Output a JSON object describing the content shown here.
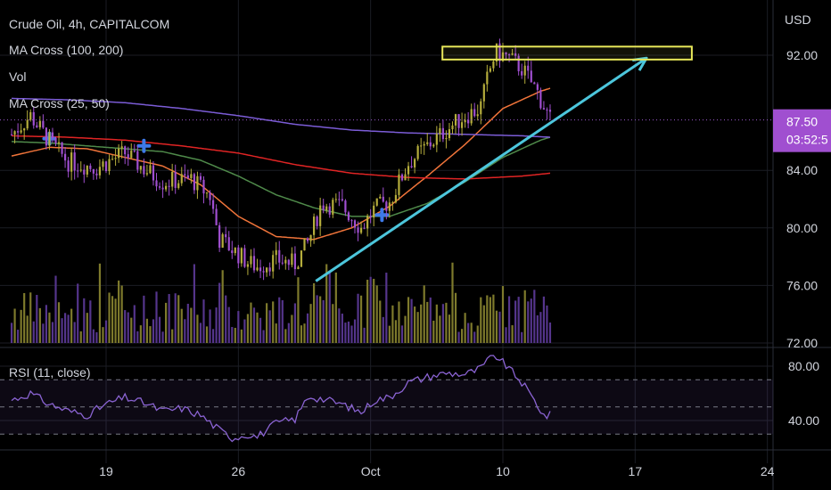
{
  "header": {
    "title": "Crude Oil, 4h, CAPITALCOM",
    "indicator_ma_slow": "MA Cross (100, 200)",
    "indicator_vol": "Vol",
    "indicator_ma_fast": "MA Cross (25, 50)",
    "indicator_rsi": "RSI (11, close)"
  },
  "price_axis": {
    "currency": "USD",
    "current_price": "87.50",
    "countdown": "03:52:5"
  },
  "colors": {
    "bull": "#b5ad3c",
    "bear": "#a04fd0",
    "vol_bull": "#7e7a2c",
    "vol_bear": "#55358c",
    "ma25": "#f0743a",
    "ma50": "#4f8a4a",
    "ma100": "#e02424",
    "ma200": "#7b5cd6",
    "trend": "#4cc6dc",
    "box": "#e8e85a",
    "cross": "#3d79e8",
    "rsi": "#8a63d2"
  },
  "chart_data": [
    {
      "type": "candlestick",
      "title": "Crude Oil, 4h, CAPITALCOM",
      "ylabel": "USD",
      "ylim": [
        72,
        94
      ],
      "y_ticks": [
        72.0,
        76.0,
        80.0,
        84.0,
        92.0
      ],
      "x_ticks": [
        {
          "label": "19",
          "day": 19
        },
        {
          "label": "26",
          "day": 26
        },
        {
          "label": "Oct",
          "day": 33
        },
        {
          "label": "10",
          "day": 40
        },
        {
          "label": "17",
          "day": 47
        },
        {
          "label": "24",
          "day": 54
        }
      ],
      "x_range_days": [
        13.5,
        57.5
      ],
      "last_price": 87.5,
      "close_anchors": [
        [
          14.0,
          86.5
        ],
        [
          15.0,
          87.8
        ],
        [
          16.0,
          86.0
        ],
        [
          17.0,
          84.6
        ],
        [
          18.5,
          84.2
        ],
        [
          20.0,
          85.2
        ],
        [
          21.0,
          84.1
        ],
        [
          22.0,
          83.2
        ],
        [
          23.5,
          83.4
        ],
        [
          24.5,
          82.2
        ],
        [
          25.0,
          79.2
        ],
        [
          25.7,
          78.5
        ],
        [
          26.5,
          77.6
        ],
        [
          27.0,
          77.3
        ],
        [
          28.0,
          77.8
        ],
        [
          29.0,
          77.5
        ],
        [
          29.7,
          79.0
        ],
        [
          30.4,
          81.7
        ],
        [
          31.5,
          81.5
        ],
        [
          32.5,
          80.0
        ],
        [
          33.2,
          81.3
        ],
        [
          34.0,
          81.8
        ],
        [
          35.0,
          84.5
        ],
        [
          36.0,
          85.7
        ],
        [
          37.0,
          86.8
        ],
        [
          38.0,
          87.8
        ],
        [
          38.8,
          88.3
        ],
        [
          39.2,
          90.5
        ],
        [
          39.6,
          92.2
        ],
        [
          40.2,
          91.9
        ],
        [
          41.0,
          91.1
        ],
        [
          41.8,
          89.5
        ],
        [
          42.5,
          87.5
        ]
      ],
      "ma_series": [
        {
          "name": "MA Cross (25, 50)",
          "length": 25,
          "key": "ma25",
          "points": [
            [
              14.0,
              85.0
            ],
            [
              16.0,
              85.6
            ],
            [
              18.0,
              85.5
            ],
            [
              20.0,
              84.9
            ],
            [
              22.0,
              84.3
            ],
            [
              24.0,
              83.0
            ],
            [
              26.0,
              80.8
            ],
            [
              28.0,
              79.4
            ],
            [
              30.0,
              79.2
            ],
            [
              32.0,
              80.0
            ],
            [
              34.0,
              81.5
            ],
            [
              36.0,
              83.6
            ],
            [
              38.0,
              85.8
            ],
            [
              40.0,
              88.3
            ],
            [
              42.0,
              89.5
            ],
            [
              42.5,
              89.7
            ]
          ]
        },
        {
          "name": "MA Cross (25, 50)",
          "length": 50,
          "key": "ma50",
          "points": [
            [
              14.0,
              86.0
            ],
            [
              16.0,
              85.9
            ],
            [
              18.0,
              85.7
            ],
            [
              20.0,
              85.5
            ],
            [
              22.0,
              85.3
            ],
            [
              24.0,
              84.7
            ],
            [
              26.0,
              83.6
            ],
            [
              28.0,
              82.3
            ],
            [
              30.0,
              81.4
            ],
            [
              32.0,
              80.8
            ],
            [
              34.0,
              80.8
            ],
            [
              36.0,
              81.7
            ],
            [
              38.0,
              83.2
            ],
            [
              40.0,
              84.9
            ],
            [
              42.0,
              86.1
            ],
            [
              42.5,
              86.3
            ]
          ]
        },
        {
          "name": "MA Cross (100, 200)",
          "length": 100,
          "key": "ma100",
          "points": [
            [
              14.0,
              86.4
            ],
            [
              17.0,
              86.3
            ],
            [
              20.0,
              86.1
            ],
            [
              23.0,
              85.7
            ],
            [
              26.0,
              85.2
            ],
            [
              29.0,
              84.4
            ],
            [
              32.0,
              83.8
            ],
            [
              35.0,
              83.5
            ],
            [
              38.0,
              83.4
            ],
            [
              41.0,
              83.6
            ],
            [
              42.5,
              83.8
            ]
          ]
        },
        {
          "name": "MA Cross (100, 200)",
          "length": 200,
          "key": "ma200",
          "points": [
            [
              14.0,
              89.0
            ],
            [
              17.0,
              88.9
            ],
            [
              20.0,
              88.7
            ],
            [
              23.0,
              88.3
            ],
            [
              26.0,
              87.8
            ],
            [
              29.0,
              87.2
            ],
            [
              32.0,
              86.8
            ],
            [
              35.0,
              86.6
            ],
            [
              38.0,
              86.5
            ],
            [
              41.0,
              86.4
            ],
            [
              42.5,
              86.3
            ]
          ]
        }
      ],
      "cross_markers": [
        [
          16.0,
          86.2
        ],
        [
          21.0,
          85.7
        ],
        [
          33.6,
          80.9
        ]
      ],
      "drawings": {
        "trendline": {
          "from": [
            30.1,
            76.3
          ],
          "to": [
            47.6,
            91.8
          ]
        },
        "box": {
          "x_from": [
            36.8,
            50.0
          ],
          "y_range": [
            91.7,
            92.6
          ]
        }
      }
    },
    {
      "type": "bar",
      "title": "Vol",
      "note": "volume bars, relative heights 0-1",
      "level_range": [
        0.12,
        1.0
      ]
    },
    {
      "type": "line",
      "title": "RSI (11, close)",
      "ylim": [
        25,
        92
      ],
      "y_ticks": [
        40.0,
        80.0
      ],
      "bands": [
        30,
        50,
        70
      ],
      "rsi_anchors": [
        [
          14.0,
          55
        ],
        [
          15.0,
          60
        ],
        [
          16.0,
          52
        ],
        [
          17.0,
          47
        ],
        [
          18.0,
          44
        ],
        [
          19.0,
          52
        ],
        [
          20.0,
          57
        ],
        [
          21.0,
          53
        ],
        [
          22.0,
          47
        ],
        [
          23.0,
          49
        ],
        [
          24.0,
          44
        ],
        [
          25.0,
          33
        ],
        [
          25.7,
          27
        ],
        [
          26.5,
          30
        ],
        [
          27.0,
          28
        ],
        [
          28.0,
          38
        ],
        [
          29.0,
          41
        ],
        [
          29.7,
          58
        ],
        [
          30.4,
          56
        ],
        [
          31.5,
          52
        ],
        [
          32.5,
          46
        ],
        [
          33.2,
          55
        ],
        [
          34.0,
          57
        ],
        [
          35.0,
          68
        ],
        [
          36.0,
          72
        ],
        [
          37.0,
          75
        ],
        [
          38.0,
          74
        ],
        [
          38.8,
          78
        ],
        [
          39.2,
          84
        ],
        [
          39.6,
          88
        ],
        [
          40.2,
          80
        ],
        [
          41.0,
          68
        ],
        [
          41.8,
          52
        ],
        [
          42.2,
          43
        ],
        [
          42.5,
          44
        ]
      ]
    }
  ]
}
